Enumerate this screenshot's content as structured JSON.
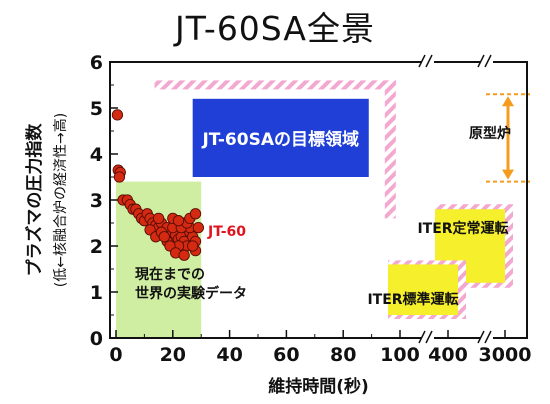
{
  "title": "JT-60SA全景",
  "chart_data": {
    "type": "scatter",
    "title": "JT-60SA全景",
    "xlabel": "維持時間(秒)",
    "ylabel": "プラズマの圧力指数",
    "ylabel_sub": "(低←核融合炉の経済性→高)",
    "ylim": [
      0,
      6
    ],
    "yticks": [
      "0",
      "1",
      "2",
      "3",
      "4",
      "5",
      "6"
    ],
    "xticks": [
      "0",
      "20",
      "40",
      "60",
      "80",
      "100",
      "400",
      "3000"
    ],
    "xlim_linear": [
      0,
      100
    ],
    "axis_breaks_x": [
      "100",
      "3000"
    ],
    "grid": false,
    "colors": {
      "data_points": "#d42a12",
      "experiment_region": "#cfeea1",
      "target_box": "#1f3fd6",
      "iter_box": "#f6ef2c",
      "reactor_arrow": "#f39c1e",
      "hatch": "#f3a8d0",
      "jt60_label": "#e0141f"
    },
    "series": [
      {
        "name": "JT-60",
        "x": [
          0.5,
          0.8,
          1.5,
          1.2,
          2.5,
          4,
          5,
          6,
          7,
          8,
          9,
          10,
          11,
          12,
          13,
          14,
          15,
          16,
          17,
          18,
          19,
          20,
          21,
          22,
          23,
          24,
          25,
          26,
          27,
          28,
          12,
          14,
          16,
          18,
          20,
          22,
          24,
          26,
          28,
          15,
          19,
          21,
          23,
          25,
          27,
          17,
          20,
          24,
          26,
          28,
          29,
          22
        ],
        "y": [
          4.85,
          3.65,
          3.6,
          3.5,
          3.0,
          3.0,
          2.9,
          2.8,
          2.8,
          2.7,
          2.6,
          2.55,
          2.7,
          2.6,
          2.5,
          2.45,
          2.4,
          2.5,
          2.3,
          2.4,
          2.2,
          2.3,
          2.25,
          2.15,
          2.2,
          2.1,
          2.0,
          2.3,
          2.2,
          2.1,
          2.35,
          2.2,
          2.3,
          2.1,
          2.4,
          2.0,
          2.5,
          2.4,
          1.9,
          2.6,
          2.0,
          1.85,
          2.4,
          2.5,
          2.0,
          2.2,
          2.6,
          1.8,
          2.6,
          2.7,
          2.4,
          2.55
        ]
      }
    ],
    "regions": [
      {
        "label": "現在までの\n世界の実験データ",
        "x": [
          0,
          30
        ],
        "y": [
          0,
          3.4
        ]
      },
      {
        "label": "JT-60SAの目標領域",
        "x": [
          15,
          95
        ],
        "y": [
          3.5,
          5.2
        ]
      },
      {
        "label": "ITER標準運転",
        "x_range_label": "100–400",
        "y": [
          0.5,
          1.6
        ]
      },
      {
        "label": "ITER定常運転",
        "x_range_label": "400–3000",
        "y": [
          1.2,
          2.8
        ]
      },
      {
        "label": "原型炉",
        "x_range_label": "3000+",
        "y": [
          3.4,
          5.3
        ]
      }
    ],
    "annotations": [
      "JT-60",
      "JT-60SAの目標領域",
      "原型炉",
      "ITER定常運転",
      "現在までの\n世界の実験データ",
      "ITER標準運転"
    ]
  }
}
